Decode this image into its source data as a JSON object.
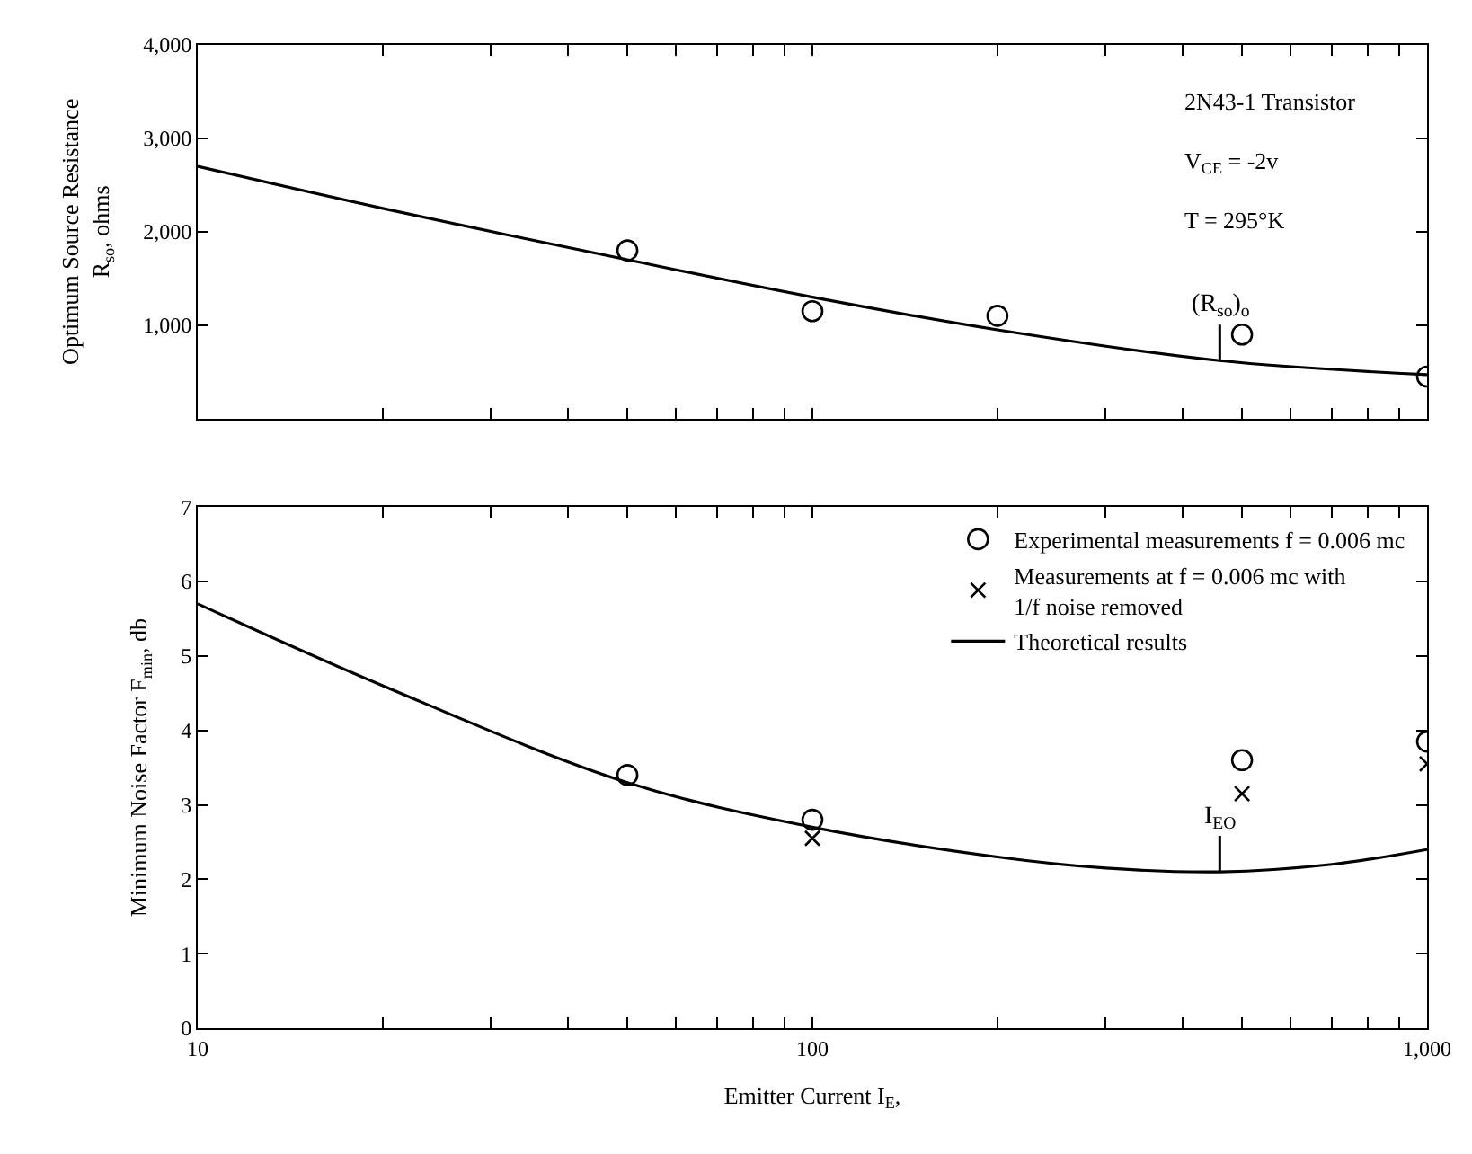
{
  "chart_data": [
    {
      "type": "line",
      "log": "x",
      "legend": false,
      "tick_labels": "y",
      "ylabel": "Optimum Source Resistance\nR$_{so}$, ohms",
      "xlim": [
        10,
        1000
      ],
      "xticks": [
        {
          "value": 10,
          "label": null
        },
        {
          "value": 20,
          "label": null
        },
        {
          "value": 30,
          "label": null
        },
        {
          "value": 40,
          "label": null
        },
        {
          "value": 50,
          "label": null
        },
        {
          "value": 60,
          "label": null
        },
        {
          "value": 70,
          "label": null
        },
        {
          "value": 80,
          "label": null
        },
        {
          "value": 90,
          "label": null
        },
        {
          "value": 100,
          "label": null
        },
        {
          "value": 200,
          "label": null
        },
        {
          "value": 300,
          "label": null
        },
        {
          "value": 400,
          "label": null
        },
        {
          "value": 500,
          "label": null
        },
        {
          "value": 600,
          "label": null
        },
        {
          "value": 700,
          "label": null
        },
        {
          "value": 800,
          "label": null
        },
        {
          "value": 900,
          "label": null
        },
        {
          "value": 1000,
          "label": null
        }
      ],
      "ylim": [
        0,
        4000
      ],
      "yticks": [
        {
          "value": 1000,
          "label": "1,000"
        },
        {
          "value": 2000,
          "label": "2,000"
        },
        {
          "value": 3000,
          "label": "3,000"
        },
        {
          "value": 4000,
          "label": "4,000"
        }
      ],
      "series": [
        {
          "type": "scatter",
          "marker": "circle",
          "color": "#000000",
          "x": [
            50,
            100,
            200,
            500,
            1000
          ],
          "values": [
            1800,
            1150,
            1100,
            900,
            450
          ]
        },
        {
          "color": "#000000",
          "x": [
            10,
            20,
            50,
            100,
            200,
            460,
            1000
          ],
          "values": [
            2700,
            2250,
            1700,
            1300,
            950,
            620,
            470
          ]
        }
      ],
      "annotations": [
        "2N43-1 Transistor",
        "V$_{CE}$ = -2v",
        "T = 295°K",
        {
          "text": "(R$_{so}$)$_{o}$",
          "x": 460,
          "y": 620
        }
      ]
    },
    {
      "type": "line",
      "log": "x",
      "legend": "top right",
      "ylabel": "Minimum Noise Factor F$_{min}$, db",
      "xlabel": "Emitter Current I$_{E}$,",
      "xlim": [
        10,
        1000
      ],
      "xticks": [
        10,
        {
          "value": 20,
          "label": null
        },
        {
          "value": 30,
          "label": null
        },
        {
          "value": 40,
          "label": null
        },
        {
          "value": 50,
          "label": null
        },
        {
          "value": 60,
          "label": null
        },
        {
          "value": 70,
          "label": null
        },
        {
          "value": 80,
          "label": null
        },
        {
          "value": 90,
          "label": null
        },
        100,
        {
          "value": 200,
          "label": null
        },
        {
          "value": 300,
          "label": null
        },
        {
          "value": 400,
          "label": null
        },
        {
          "value": 500,
          "label": null
        },
        {
          "value": 600,
          "label": null
        },
        {
          "value": 700,
          "label": null
        },
        {
          "value": 800,
          "label": null
        },
        {
          "value": 900,
          "label": null
        },
        {
          "value": 1000,
          "label": "1,000"
        }
      ],
      "ylim": [
        0,
        7
      ],
      "yticks": [
        0,
        1,
        2,
        3,
        4,
        5,
        6,
        7
      ],
      "series": [
        {
          "type": "scatter",
          "marker": "circle",
          "name": "Experimental measurements f = 0.006 mc",
          "color": "#000000",
          "x": [
            50,
            100,
            500,
            1000
          ],
          "values": [
            3.4,
            2.8,
            3.6,
            3.85
          ]
        },
        {
          "type": "scatter",
          "marker": "cross",
          "name": "Measurements at f = 0.006 mc with\n1/f noise removed",
          "color": "#000000",
          "x": [
            100,
            500,
            1000
          ],
          "values": [
            2.55,
            3.15,
            3.55
          ]
        },
        {
          "name": "Theoretical results",
          "color": "#000000",
          "x": [
            10,
            20,
            50,
            100,
            200,
            300,
            460,
            700,
            1000
          ],
          "values": [
            5.7,
            4.6,
            3.3,
            2.7,
            2.3,
            2.15,
            2.1,
            2.2,
            2.4
          ]
        }
      ],
      "annotations": [
        {
          "text": "I$_{EO}$",
          "x": 460,
          "y": 2.1
        }
      ]
    }
  ]
}
